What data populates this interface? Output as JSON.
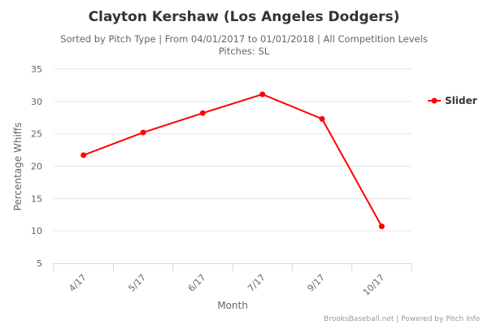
{
  "chart_data": {
    "type": "line",
    "title": "Clayton Kershaw (Los Angeles Dodgers)",
    "subtitle": "Sorted by Pitch Type | From 04/01/2017 to 01/01/2018 | All Competition Levels",
    "subtitle2": "Pitches: SL",
    "xlabel": "Month",
    "ylabel": "Percentage Whiffs",
    "categories": [
      "4/17",
      "5/17",
      "6/17",
      "7/17",
      "9/17",
      "10/17"
    ],
    "ylim": [
      5,
      35
    ],
    "yticks": [
      "5",
      "10",
      "15",
      "20",
      "25",
      "30",
      "35"
    ],
    "grid": true,
    "legend_position": "right",
    "series": [
      {
        "name": "Slider",
        "color": "#ff0000",
        "values": [
          21.7,
          25.2,
          28.2,
          31.1,
          27.3,
          10.7
        ]
      }
    ],
    "credit": "BrooksBaseball.net | Powered by Pitch Info"
  }
}
